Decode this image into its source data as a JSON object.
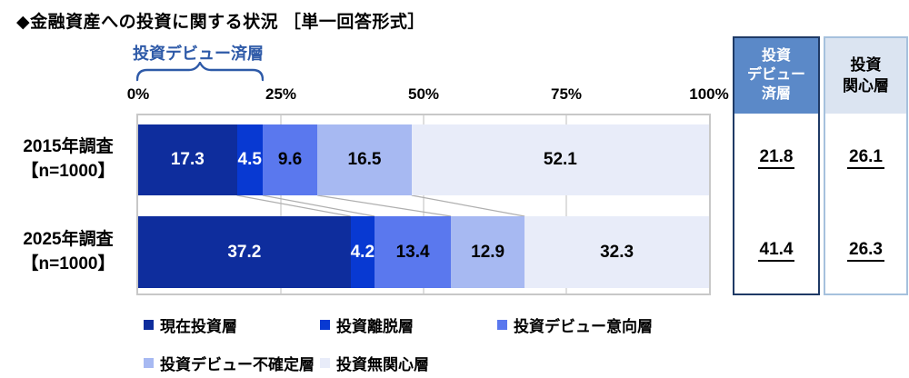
{
  "title": "◆金融資産への投資に関する状況 ［単一回答形式］",
  "annotation": {
    "bracket_label": "投資デビュー済層",
    "bracket_range_pct": [
      0,
      21.8
    ]
  },
  "axis": {
    "ticks": [
      {
        "label": "0%",
        "pct": 0
      },
      {
        "label": "25%",
        "pct": 25
      },
      {
        "label": "50%",
        "pct": 50
      },
      {
        "label": "75%",
        "pct": 75
      },
      {
        "label": "100%",
        "pct": 100
      }
    ]
  },
  "row_labels": [
    [
      "2015年調査",
      "【n=1000】"
    ],
    [
      "2025年調査",
      "【n=1000】"
    ]
  ],
  "chart_data": {
    "type": "bar",
    "orientation": "horizontal-stacked",
    "title": "◆金融資産への投資に関する状況 ［単一回答形式］",
    "categories": [
      "2015年調査【n=1000】",
      "2025年調査【n=1000】"
    ],
    "series": [
      {
        "name": "現在投資層",
        "values": [
          17.3,
          37.2
        ]
      },
      {
        "name": "投資離脱層",
        "values": [
          4.5,
          4.2
        ]
      },
      {
        "name": "投資デビュー意向層",
        "values": [
          9.6,
          13.4
        ]
      },
      {
        "name": "投資デビュー不確定層",
        "values": [
          16.5,
          12.9
        ]
      },
      {
        "name": "投資無関心層",
        "values": [
          52.1,
          32.3
        ]
      }
    ],
    "xlim": [
      0,
      100
    ],
    "x_ticks": [
      "0%",
      "25%",
      "50%",
      "75%",
      "100%"
    ],
    "grid": "vertical at 25/50/75",
    "legend_position": "bottom",
    "annotation_bracket": {
      "label": "投資デビュー済層",
      "range": [
        0,
        21.8
      ]
    }
  },
  "side_columns": [
    {
      "header_lines": [
        "投資",
        "デビュー",
        "済層"
      ],
      "values": [
        "21.8",
        "41.4"
      ],
      "style": "dark"
    },
    {
      "header_lines": [
        "投資",
        "関心層"
      ],
      "values": [
        "26.1",
        "26.3"
      ],
      "style": "light"
    }
  ],
  "colors": {
    "segments": [
      "#0E2D9D",
      "#0839D2",
      "#5A78EE",
      "#A7B9F2",
      "#E8ECF9"
    ],
    "segment_label_colors": [
      "#FFFFFF",
      "#FFFFFF",
      "#000000",
      "#000000",
      "#000000"
    ],
    "annotation_blue": "#2E5AA8",
    "plot_border": "#C8C8C8",
    "gridline": "#CDCDCD",
    "connector": "#AFAFAF",
    "side_col1_header_bg": "#5B89C8",
    "side_col1_header_text": "#FFFFFF",
    "side_col1_border": "#1F3A66",
    "side_col2_header_bg": "#DBE4F1",
    "side_col2_header_text": "#000000",
    "side_col2_border": "#A6C1DD"
  }
}
